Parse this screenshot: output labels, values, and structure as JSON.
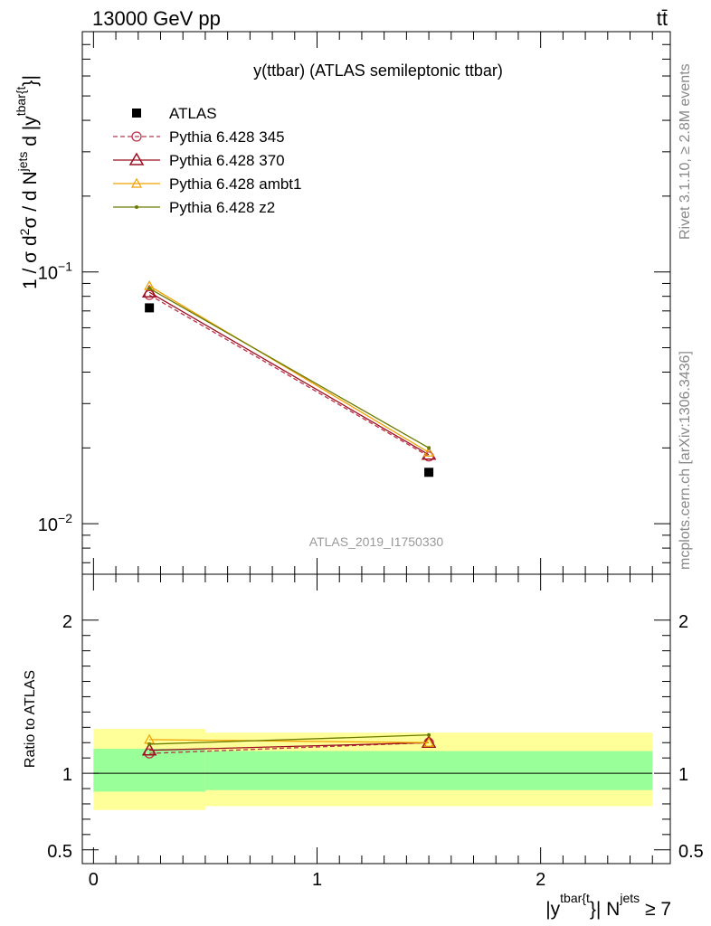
{
  "header": {
    "energy_label": "13000 GeV pp",
    "process_label": "tt̄"
  },
  "side_labels": {
    "rivet": "Rivet 3.1.10, ≥ 2.8M events",
    "mcplots": "mcplots.cern.ch [arXiv:1306.3436]"
  },
  "chart_data": [
    {
      "type": "line",
      "title": "y(ttbar) (ATLAS semileptonic ttbar)",
      "watermark": "ATLAS_2019_I1750330",
      "ylabel": {
        "base": "1 / σ d",
        "sup1": "2",
        "mid": "σ / d N",
        "sup2": "jets",
        "mid2": " d |y",
        "sup3": "tbar{t",
        "end": "}|"
      },
      "yscale": "log",
      "ylim": [
        0.0063,
        0.9
      ],
      "xlim": [
        -0.05,
        2.58
      ],
      "yticks": [
        {
          "value": 0.1,
          "mantissa": "10",
          "exponent": "−1"
        },
        {
          "value": 0.01,
          "mantissa": "10",
          "exponent": "−2"
        }
      ],
      "x": [
        0.25,
        1.5
      ],
      "series": [
        {
          "name": "ATLAS",
          "values": [
            0.072,
            0.016
          ],
          "color": "#000000",
          "marker": "square",
          "dash": "none"
        },
        {
          "name": "Pythia 6.428 345",
          "values": [
            0.081,
            0.0185
          ],
          "color": "#c0304a",
          "marker": "circle-open",
          "dash": "dashed"
        },
        {
          "name": "Pythia 6.428 370",
          "values": [
            0.083,
            0.0188
          ],
          "color": "#9a1020",
          "marker": "triangle-open",
          "dash": "none"
        },
        {
          "name": "Pythia 6.428 ambt1",
          "values": [
            0.088,
            0.0192
          ],
          "color": "#f0a000",
          "marker": "triangle-open-small",
          "dash": "none"
        },
        {
          "name": "Pythia 6.428 z2",
          "values": [
            0.086,
            0.02
          ],
          "color": "#6b7a00",
          "marker": "dot",
          "dash": "none"
        }
      ],
      "legend": "top-left"
    },
    {
      "type": "line",
      "ylabel": "Ratio to ATLAS",
      "ylim": [
        0.41,
        2.3
      ],
      "xlim": [
        -0.05,
        2.58
      ],
      "yticks": [
        {
          "value": 0.5,
          "label": "0.5"
        },
        {
          "value": 1,
          "label": "1"
        },
        {
          "value": 2,
          "label": "2"
        }
      ],
      "xticks": [
        {
          "value": 0,
          "label": "0"
        },
        {
          "value": 1,
          "label": "1"
        },
        {
          "value": 2,
          "label": "2"
        }
      ],
      "xlabel": {
        "base": "|y",
        "sup1": "tbar{t",
        "mid": "}| N",
        "sup2": "jets",
        "end": " ≥ 7"
      },
      "bands": [
        {
          "x0": 0,
          "x1": 0.5,
          "yellow": [
            0.76,
            1.29
          ],
          "green": [
            0.88,
            1.16
          ]
        },
        {
          "x0": 0.5,
          "x1": 2.5,
          "yellow": [
            0.785,
            1.265
          ],
          "green": [
            0.89,
            1.145
          ]
        }
      ],
      "x": [
        0.25,
        1.5
      ],
      "series": [
        {
          "name": "Pythia 6.428 345",
          "values": [
            1.13,
            1.2
          ],
          "color": "#c0304a",
          "marker": "circle-open",
          "dash": "dashed"
        },
        {
          "name": "Pythia 6.428 370",
          "values": [
            1.15,
            1.2
          ],
          "color": "#9a1020",
          "marker": "triangle-open",
          "dash": "none"
        },
        {
          "name": "Pythia 6.428 ambt1",
          "values": [
            1.22,
            1.2
          ],
          "color": "#f0a000",
          "marker": "triangle-open-small",
          "dash": "none"
        },
        {
          "name": "Pythia 6.428 z2",
          "values": [
            1.19,
            1.25
          ],
          "color": "#6b7a00",
          "marker": "dot",
          "dash": "none"
        }
      ]
    }
  ]
}
